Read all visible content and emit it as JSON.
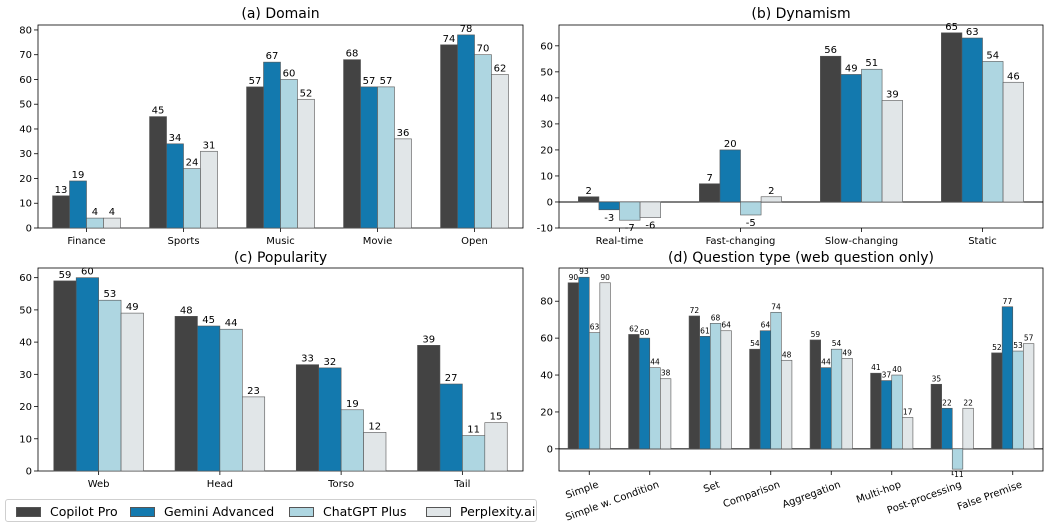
{
  "legend": {
    "items": [
      {
        "label": "Copilot Pro",
        "color": "#434343"
      },
      {
        "label": "Gemini Advanced",
        "color": "#1379ae"
      },
      {
        "label": "ChatGPT Plus",
        "color": "#aed6e1"
      },
      {
        "label": "Perplexity.ai",
        "color": "#e1e6e8"
      }
    ]
  },
  "chart_data": [
    {
      "type": "bar",
      "title": "(a) Domain",
      "categories": [
        "Finance",
        "Sports",
        "Music",
        "Movie",
        "Open"
      ],
      "series": [
        {
          "name": "Copilot Pro",
          "values": [
            13,
            45,
            57,
            68,
            74
          ]
        },
        {
          "name": "Gemini Advanced",
          "values": [
            19,
            34,
            67,
            57,
            78
          ]
        },
        {
          "name": "ChatGPT Plus",
          "values": [
            4,
            24,
            60,
            57,
            70
          ]
        },
        {
          "name": "Perplexity.ai",
          "values": [
            4,
            31,
            52,
            36,
            62
          ]
        }
      ],
      "ylim": [
        0,
        82
      ],
      "yticks": [
        0,
        10,
        20,
        30,
        40,
        50,
        60,
        70,
        80
      ],
      "grid": false
    },
    {
      "type": "bar",
      "title": "(b) Dynamism",
      "categories": [
        "Real-time",
        "Fast-changing",
        "Slow-changing",
        "Static"
      ],
      "series": [
        {
          "name": "Copilot Pro",
          "values": [
            2,
            7,
            56,
            65
          ]
        },
        {
          "name": "Gemini Advanced",
          "values": [
            -3,
            20,
            49,
            63
          ]
        },
        {
          "name": "ChatGPT Plus",
          "values": [
            -7,
            -5,
            51,
            54
          ]
        },
        {
          "name": "Perplexity.ai",
          "values": [
            -6,
            2,
            39,
            46
          ]
        }
      ],
      "ylim": [
        -10,
        68
      ],
      "yticks": [
        -10,
        0,
        10,
        20,
        30,
        40,
        50,
        60
      ],
      "grid": false
    },
    {
      "type": "bar",
      "title": "(c) Popularity",
      "categories": [
        "Web",
        "Head",
        "Torso",
        "Tail"
      ],
      "series": [
        {
          "name": "Copilot Pro",
          "values": [
            59,
            48,
            33,
            39
          ]
        },
        {
          "name": "Gemini Advanced",
          "values": [
            60,
            45,
            32,
            27
          ]
        },
        {
          "name": "ChatGPT Plus",
          "values": [
            53,
            44,
            19,
            11
          ]
        },
        {
          "name": "Perplexity.ai",
          "values": [
            49,
            23,
            12,
            15
          ]
        }
      ],
      "ylim": [
        0,
        63
      ],
      "yticks": [
        0,
        10,
        20,
        30,
        40,
        50,
        60
      ],
      "grid": false
    },
    {
      "type": "bar",
      "title": "(d) Question type (web question only)",
      "categories": [
        "Simple",
        "Simple w. Condition",
        "Set",
        "Comparison",
        "Aggregation",
        "Multi-hop",
        "Post-processing",
        "False Premise"
      ],
      "series": [
        {
          "name": "Copilot Pro",
          "values": [
            90,
            62,
            72,
            54,
            59,
            41,
            35,
            52
          ]
        },
        {
          "name": "Gemini Advanced",
          "values": [
            93,
            60,
            61,
            64,
            44,
            37,
            22,
            77
          ]
        },
        {
          "name": "ChatGPT Plus",
          "values": [
            63,
            44,
            68,
            74,
            54,
            40,
            -11,
            53
          ]
        },
        {
          "name": "Perplexity.ai",
          "values": [
            90,
            38,
            64,
            48,
            49,
            17,
            22,
            57
          ]
        }
      ],
      "ylim": [
        -12,
        98
      ],
      "yticks": [
        0,
        20,
        40,
        60,
        80
      ],
      "grid": false
    }
  ]
}
